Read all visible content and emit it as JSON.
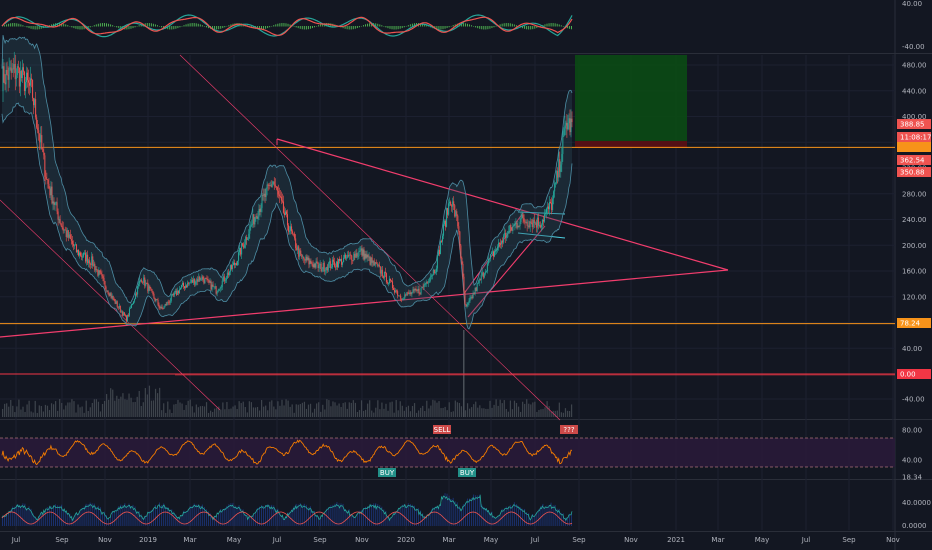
{
  "chart_data": {
    "type": "candlestick",
    "x_ticks": [
      "Jul",
      "Sep",
      "Nov",
      "2019",
      "Mar",
      "May",
      "Jul",
      "Sep",
      "Nov",
      "2020",
      "Mar",
      "May",
      "Jul",
      "Sep",
      "Nov",
      "2021",
      "Mar",
      "May",
      "Jul",
      "Sep",
      "Nov"
    ],
    "colors": {
      "background": "#131722",
      "up": "#26a69a",
      "down": "#ef5350",
      "green_line": "#26a69a",
      "red_line": "#ef5350",
      "trendline": "#f23d6d",
      "orange_line": "#f7931a",
      "red_hline": "#f23645",
      "target_box": "#0b4a14",
      "stop_box": "#5c0f14",
      "band": "#4d8da4",
      "rsi_line": "#f57c00",
      "rsi_band": "#2a1a3a",
      "hist_blue": "#2962ff",
      "volume": "#4a5058"
    },
    "panes": [
      {
        "name": "oscillator",
        "y_ticks": [
          "40.00",
          "-40.00"
        ]
      },
      {
        "name": "price",
        "y_ticks": [
          "480.00",
          "440.00",
          "400.00",
          "360.00",
          "320.00",
          "280.00",
          "240.00",
          "200.00",
          "160.00",
          "120.00",
          "80.00",
          "40.00",
          "-40.00"
        ],
        "price_tags": [
          {
            "text": "388.85",
            "color": "#ef5350"
          },
          {
            "text": "11:08:17",
            "color": "#ef5350"
          },
          {
            "text": "",
            "color": "#f7931a"
          },
          {
            "text": "362.54",
            "color": "#ef5350"
          },
          {
            "text": "350.88",
            "color": "#ef5350"
          },
          {
            "text": "78.24",
            "color": "#f7931a"
          },
          {
            "text": "0.00",
            "color": "#f23645"
          }
        ],
        "horizontal_levels": [
          {
            "name": "resistance",
            "value": 352,
            "color": "#f7931a"
          },
          {
            "name": "support",
            "value": 78.24,
            "color": "#f7931a"
          },
          {
            "name": "zero",
            "value": 0,
            "color": "#f23645"
          }
        ]
      },
      {
        "name": "rsi",
        "y_ticks": [
          "80.00",
          "40.00",
          "18.34"
        ],
        "annotations": [
          {
            "text": "SELL",
            "color": "#ef5350"
          },
          {
            "text": "BUY",
            "color": "#26a69a"
          },
          {
            "text": "BUY",
            "color": "#26a69a"
          },
          {
            "text": "???",
            "color": "#ef5350"
          }
        ]
      },
      {
        "name": "histogram",
        "y_ticks": [
          "40.0000",
          "0.0000"
        ]
      }
    ]
  }
}
